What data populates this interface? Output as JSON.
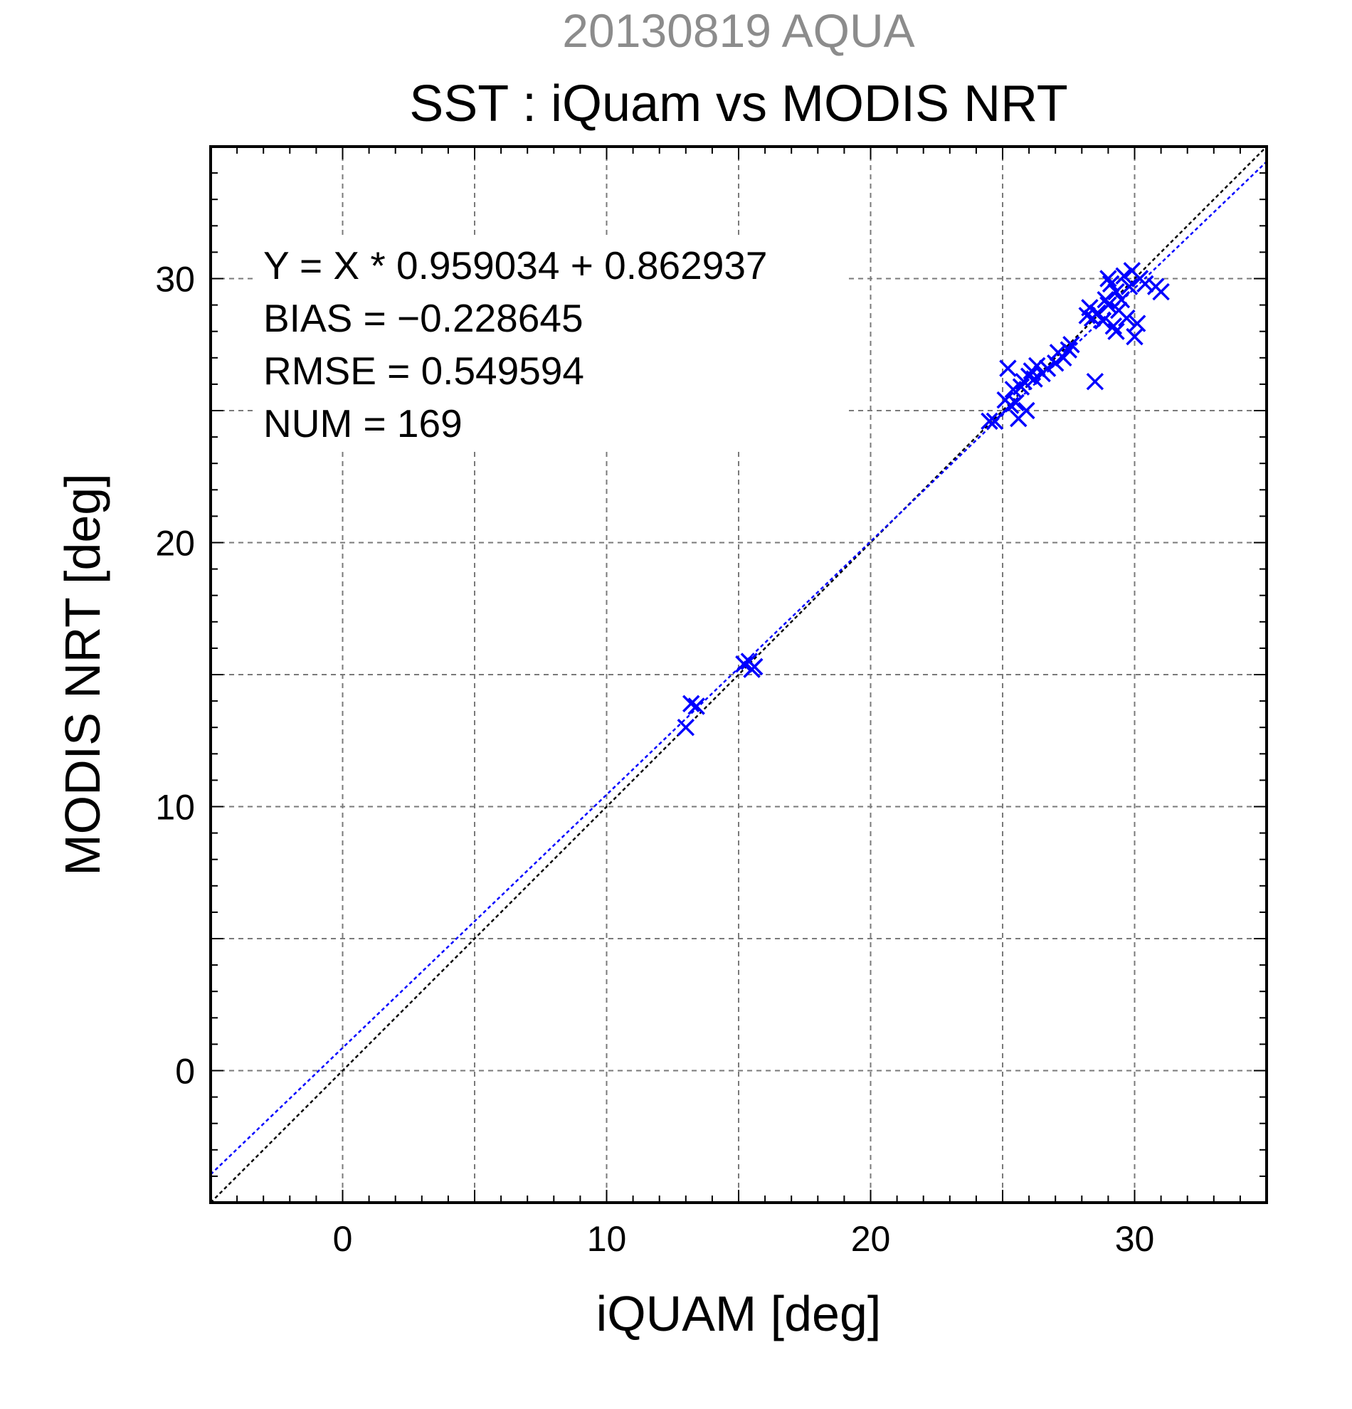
{
  "chart_data": {
    "type": "scatter",
    "supertitle": "20130819 AQUA",
    "title": "SST : iQuam vs MODIS NRT",
    "xlabel": "iQUAM [deg]",
    "ylabel": "MODIS NRT [deg]",
    "xlim": [
      -5,
      35
    ],
    "ylim": [
      -5,
      35
    ],
    "xticks": [
      0,
      10,
      20,
      30
    ],
    "yticks": [
      0,
      10,
      20,
      30
    ],
    "x_tick_labels": [
      "0",
      "10",
      "20",
      "30"
    ],
    "y_tick_labels": [
      "0",
      "10",
      "20",
      "30"
    ],
    "grid": true,
    "stats": {
      "equation": "Y = X * 0.959034 + 0.862937",
      "bias": "BIAS = −0.228645",
      "rmse": "RMSE = 0.549594",
      "num": "NUM = 169"
    },
    "regression": {
      "slope": 0.959034,
      "intercept": 0.862937,
      "color": "#0000ff"
    },
    "identity_line": {
      "color": "#000000"
    },
    "series": [
      {
        "marker": "x",
        "color": "#0000ff",
        "points": [
          [
            13.0,
            13.0
          ],
          [
            13.2,
            13.9
          ],
          [
            13.4,
            13.8
          ],
          [
            15.2,
            15.4
          ],
          [
            15.4,
            15.5
          ],
          [
            15.6,
            15.3
          ],
          [
            15.5,
            15.2
          ],
          [
            24.5,
            24.6
          ],
          [
            24.7,
            24.6
          ],
          [
            25.1,
            25.4
          ],
          [
            25.2,
            26.6
          ],
          [
            25.3,
            25.2
          ],
          [
            25.4,
            25.8
          ],
          [
            25.5,
            25.3
          ],
          [
            25.6,
            24.7
          ],
          [
            25.7,
            25.9
          ],
          [
            25.8,
            26.1
          ],
          [
            25.9,
            25.0
          ],
          [
            26.0,
            26.3
          ],
          [
            26.1,
            26.5
          ],
          [
            26.2,
            26.2
          ],
          [
            26.3,
            26.7
          ],
          [
            26.5,
            26.4
          ],
          [
            26.7,
            26.6
          ],
          [
            27.0,
            26.8
          ],
          [
            27.1,
            27.2
          ],
          [
            27.3,
            27.0
          ],
          [
            27.5,
            27.3
          ],
          [
            27.6,
            27.5
          ],
          [
            28.2,
            28.6
          ],
          [
            28.3,
            28.9
          ],
          [
            28.4,
            28.5
          ],
          [
            28.5,
            26.1
          ],
          [
            28.6,
            28.7
          ],
          [
            28.8,
            28.4
          ],
          [
            29.0,
            29.0
          ],
          [
            29.1,
            29.8
          ],
          [
            29.2,
            28.2
          ],
          [
            29.3,
            29.5
          ],
          [
            29.4,
            28.8
          ],
          [
            29.5,
            29.2
          ],
          [
            29.6,
            30.1
          ],
          [
            29.7,
            28.5
          ],
          [
            29.8,
            29.7
          ],
          [
            29.9,
            30.3
          ],
          [
            30.0,
            27.8
          ],
          [
            30.1,
            28.3
          ],
          [
            30.2,
            30.0
          ],
          [
            30.4,
            29.8
          ],
          [
            30.8,
            29.7
          ],
          [
            31.0,
            29.5
          ],
          [
            29.0,
            30.0
          ],
          [
            29.3,
            28.0
          ],
          [
            28.9,
            29.2
          ]
        ]
      }
    ]
  }
}
